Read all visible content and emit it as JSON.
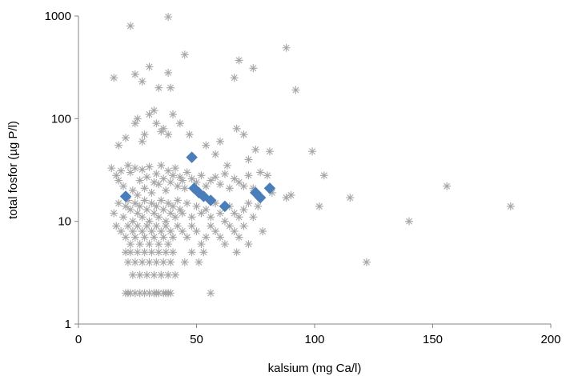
{
  "chart_data": {
    "type": "scatter",
    "title": "",
    "xlabel": "kalsium (mg Ca/l)",
    "ylabel": "total fosfor (µg P/l)",
    "xlim": [
      0,
      200
    ],
    "ylim": [
      1,
      1000
    ],
    "y_scale": "log",
    "grid": false,
    "legend": "none",
    "x_ticks": [
      0,
      50,
      100,
      150,
      200
    ],
    "x_tick_labels": [
      "0",
      "50",
      "100",
      "150",
      "200"
    ],
    "y_ticks": [
      1,
      10,
      100,
      1000
    ],
    "y_tick_labels": [
      "1",
      "10",
      "100",
      "1000"
    ],
    "series": [
      {
        "marker": "asterisk",
        "color": "#a6a6a6",
        "points": [
          [
            22,
            800
          ],
          [
            38,
            980
          ],
          [
            15,
            250
          ],
          [
            24,
            270
          ],
          [
            27,
            230
          ],
          [
            30,
            320
          ],
          [
            34,
            200
          ],
          [
            38,
            280
          ],
          [
            39,
            200
          ],
          [
            45,
            420
          ],
          [
            66,
            250
          ],
          [
            68,
            370
          ],
          [
            74,
            310
          ],
          [
            88,
            490
          ],
          [
            92,
            190
          ],
          [
            17,
            55
          ],
          [
            20,
            65
          ],
          [
            24,
            90
          ],
          [
            25,
            100
          ],
          [
            27,
            60
          ],
          [
            28,
            70
          ],
          [
            30,
            110
          ],
          [
            32,
            120
          ],
          [
            33,
            90
          ],
          [
            35,
            75
          ],
          [
            36,
            80
          ],
          [
            38,
            70
          ],
          [
            40,
            110
          ],
          [
            43,
            90
          ],
          [
            47,
            70
          ],
          [
            54,
            55
          ],
          [
            58,
            45
          ],
          [
            60,
            60
          ],
          [
            63,
            35
          ],
          [
            67,
            80
          ],
          [
            70,
            70
          ],
          [
            72,
            40
          ],
          [
            75,
            50
          ],
          [
            77,
            30
          ],
          [
            81,
            48
          ],
          [
            80,
            28
          ],
          [
            99,
            48
          ],
          [
            104,
            28
          ],
          [
            82,
            19
          ],
          [
            88,
            17
          ],
          [
            90,
            18
          ],
          [
            102,
            14
          ],
          [
            115,
            17
          ],
          [
            140,
            10
          ],
          [
            156,
            22
          ],
          [
            183,
            14
          ],
          [
            122,
            4
          ],
          [
            14,
            33
          ],
          [
            16,
            28
          ],
          [
            17,
            25
          ],
          [
            18,
            31
          ],
          [
            19,
            22
          ],
          [
            21,
            35
          ],
          [
            22,
            30
          ],
          [
            23,
            20
          ],
          [
            24,
            33
          ],
          [
            25,
            18
          ],
          [
            26,
            25
          ],
          [
            27,
            32
          ],
          [
            28,
            21
          ],
          [
            29,
            27
          ],
          [
            30,
            34
          ],
          [
            31,
            19
          ],
          [
            32,
            24
          ],
          [
            33,
            29
          ],
          [
            34,
            23
          ],
          [
            35,
            35
          ],
          [
            36,
            26
          ],
          [
            37,
            20
          ],
          [
            38,
            31
          ],
          [
            39,
            24
          ],
          [
            40,
            28
          ],
          [
            41,
            33
          ],
          [
            42,
            22
          ],
          [
            43,
            27
          ],
          [
            44,
            25
          ],
          [
            45,
            21
          ],
          [
            46,
            30
          ],
          [
            48,
            26
          ],
          [
            50,
            24
          ],
          [
            52,
            28
          ],
          [
            54,
            22
          ],
          [
            56,
            25
          ],
          [
            58,
            27
          ],
          [
            60,
            23
          ],
          [
            62,
            29
          ],
          [
            64,
            21
          ],
          [
            66,
            26
          ],
          [
            68,
            24
          ],
          [
            70,
            22
          ],
          [
            72,
            28
          ],
          [
            74,
            21
          ],
          [
            15,
            12
          ],
          [
            17,
            15
          ],
          [
            19,
            11
          ],
          [
            20,
            14
          ],
          [
            21,
            16
          ],
          [
            22,
            13
          ],
          [
            23,
            10
          ],
          [
            24,
            15
          ],
          [
            25,
            12
          ],
          [
            26,
            14
          ],
          [
            27,
            11
          ],
          [
            28,
            16
          ],
          [
            29,
            13
          ],
          [
            30,
            10
          ],
          [
            31,
            15
          ],
          [
            32,
            12
          ],
          [
            33,
            14
          ],
          [
            34,
            11
          ],
          [
            35,
            16
          ],
          [
            36,
            13
          ],
          [
            37,
            10
          ],
          [
            38,
            15
          ],
          [
            39,
            12
          ],
          [
            40,
            14
          ],
          [
            41,
            11
          ],
          [
            42,
            16
          ],
          [
            43,
            13
          ],
          [
            44,
            12
          ],
          [
            46,
            15
          ],
          [
            48,
            11
          ],
          [
            50,
            14
          ],
          [
            52,
            12
          ],
          [
            54,
            13
          ],
          [
            56,
            11
          ],
          [
            58,
            15
          ],
          [
            60,
            12
          ],
          [
            62,
            10
          ],
          [
            64,
            14
          ],
          [
            66,
            12
          ],
          [
            68,
            11
          ],
          [
            70,
            13
          ],
          [
            72,
            15
          ],
          [
            74,
            11
          ],
          [
            16,
            9
          ],
          [
            18,
            8
          ],
          [
            20,
            7
          ],
          [
            21,
            9
          ],
          [
            22,
            6
          ],
          [
            23,
            8
          ],
          [
            24,
            7
          ],
          [
            25,
            9
          ],
          [
            26,
            6
          ],
          [
            27,
            8
          ],
          [
            28,
            7
          ],
          [
            29,
            9
          ],
          [
            30,
            6
          ],
          [
            31,
            8
          ],
          [
            32,
            7
          ],
          [
            33,
            9
          ],
          [
            34,
            6
          ],
          [
            35,
            8
          ],
          [
            36,
            7
          ],
          [
            37,
            9
          ],
          [
            38,
            6
          ],
          [
            39,
            8
          ],
          [
            40,
            7
          ],
          [
            42,
            9
          ],
          [
            44,
            8
          ],
          [
            46,
            7
          ],
          [
            48,
            9
          ],
          [
            50,
            8
          ],
          [
            52,
            6
          ],
          [
            54,
            7
          ],
          [
            56,
            9
          ],
          [
            58,
            8
          ],
          [
            60,
            7
          ],
          [
            62,
            6
          ],
          [
            64,
            9
          ],
          [
            66,
            8
          ],
          [
            68,
            7
          ],
          [
            70,
            9
          ],
          [
            72,
            6
          ],
          [
            78,
            8
          ],
          [
            76,
            14
          ],
          [
            20,
            5
          ],
          [
            21,
            4
          ],
          [
            22,
            5
          ],
          [
            23,
            3
          ],
          [
            24,
            4
          ],
          [
            25,
            5
          ],
          [
            26,
            3
          ],
          [
            27,
            4
          ],
          [
            28,
            5
          ],
          [
            29,
            3
          ],
          [
            30,
            4
          ],
          [
            31,
            5
          ],
          [
            32,
            3
          ],
          [
            33,
            4
          ],
          [
            34,
            5
          ],
          [
            35,
            3
          ],
          [
            36,
            4
          ],
          [
            37,
            5
          ],
          [
            38,
            3
          ],
          [
            39,
            4
          ],
          [
            40,
            5
          ],
          [
            41,
            3
          ],
          [
            45,
            4
          ],
          [
            48,
            5
          ],
          [
            51,
            4
          ],
          [
            53,
            5
          ],
          [
            67,
            5
          ],
          [
            20,
            2
          ],
          [
            21,
            2
          ],
          [
            22,
            2
          ],
          [
            24,
            2
          ],
          [
            26,
            2
          ],
          [
            28,
            2
          ],
          [
            30,
            2
          ],
          [
            32,
            2
          ],
          [
            33,
            2
          ],
          [
            34,
            2
          ],
          [
            36,
            2
          ],
          [
            37,
            2
          ],
          [
            38,
            2
          ],
          [
            39,
            2
          ],
          [
            56,
            2
          ]
        ]
      },
      {
        "marker": "diamond",
        "color": "#4a7ebb",
        "points": [
          [
            20,
            17.5
          ],
          [
            48,
            42
          ],
          [
            49,
            21
          ],
          [
            51,
            19
          ],
          [
            53,
            17.5
          ],
          [
            56,
            16
          ],
          [
            62,
            14
          ],
          [
            75,
            19
          ],
          [
            77,
            17
          ],
          [
            81,
            21
          ]
        ]
      }
    ]
  }
}
